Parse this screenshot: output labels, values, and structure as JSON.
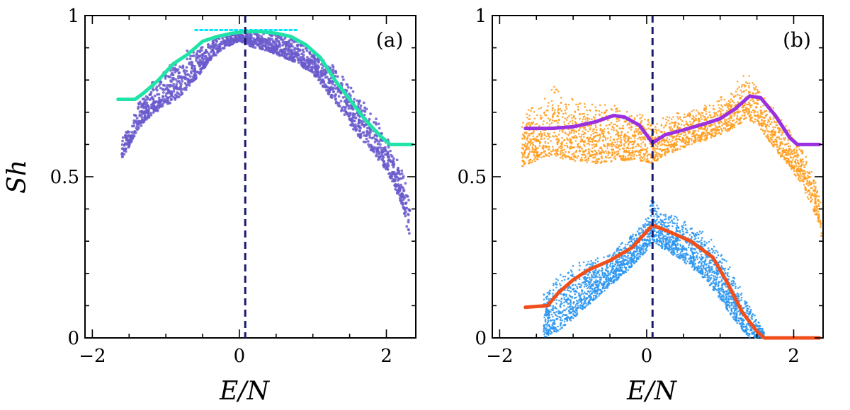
{
  "chart_data": [
    {
      "type": "scatter",
      "panel_label": "(a)",
      "xlabel": "E/N",
      "ylabel": "Sh",
      "xlim": [
        -2.1,
        2.4
      ],
      "ylim": [
        0,
        1
      ],
      "xticks": [
        -2,
        0,
        2
      ],
      "xtick_labels": [
        "−2",
        "0",
        "2"
      ],
      "yticks": [
        0,
        0.5,
        1
      ],
      "ytick_labels": [
        "0",
        "0.5",
        "1"
      ],
      "vline_x": 0.08,
      "colors": {
        "scatter": "#6a5acd",
        "curve": "#20e3a8",
        "ref_line": "#00e5ff",
        "vline": "#1a1a6e"
      },
      "series": [
        {
          "name": "average",
          "x": [
            -1.65,
            -1.42,
            -1.3,
            -1.1,
            -0.9,
            -0.7,
            -0.5,
            -0.3,
            -0.1,
            0.08,
            0.3,
            0.5,
            0.7,
            0.9,
            1.1,
            1.3,
            1.5,
            1.7,
            1.9,
            2.05,
            2.35
          ],
          "y": [
            0.74,
            0.74,
            0.76,
            0.8,
            0.85,
            0.88,
            0.92,
            0.935,
            0.945,
            0.95,
            0.95,
            0.945,
            0.935,
            0.91,
            0.87,
            0.8,
            0.74,
            0.68,
            0.63,
            0.6,
            0.6
          ]
        },
        {
          "name": "reference",
          "x": [
            -0.6,
            0.8
          ],
          "y": [
            0.955,
            0.955
          ]
        },
        {
          "name": "scatter_envelope",
          "x": [
            -1.6,
            -1.4,
            -1.2,
            -1.0,
            -0.8,
            -0.6,
            -0.4,
            -0.2,
            0.0,
            0.2,
            0.4,
            0.6,
            0.8,
            1.0,
            1.2,
            1.4,
            1.6,
            1.8,
            2.0,
            2.2,
            2.32
          ],
          "y_top": [
            0.62,
            0.72,
            0.79,
            0.84,
            0.88,
            0.91,
            0.93,
            0.945,
            0.955,
            0.955,
            0.95,
            0.94,
            0.92,
            0.89,
            0.86,
            0.82,
            0.77,
            0.71,
            0.63,
            0.53,
            0.44
          ],
          "y_bottom": [
            0.54,
            0.64,
            0.69,
            0.72,
            0.75,
            0.8,
            0.86,
            0.9,
            0.92,
            0.9,
            0.89,
            0.87,
            0.85,
            0.82,
            0.76,
            0.7,
            0.63,
            0.58,
            0.52,
            0.42,
            0.3
          ]
        }
      ]
    },
    {
      "type": "scatter",
      "panel_label": "(b)",
      "xlabel": "E/N",
      "ylabel": "",
      "xlim": [
        -2.1,
        2.4
      ],
      "ylim": [
        0,
        1
      ],
      "xticks": [
        -2,
        0,
        2
      ],
      "xtick_labels": [
        "−2",
        "0",
        "2"
      ],
      "yticks": [
        0,
        0.5,
        1
      ],
      "ytick_labels": [
        "0",
        "0.5",
        "1"
      ],
      "vline_x": 0.08,
      "colors": {
        "upper_scatter": "#ff9b1a",
        "upper_curve": "#9b30e0",
        "lower_scatter": "#2b95f0",
        "lower_curve": "#f04e1a",
        "vline": "#1a1a6e"
      },
      "series": [
        {
          "name": "upper_average",
          "x": [
            -1.65,
            -1.3,
            -1.0,
            -0.7,
            -0.45,
            -0.3,
            -0.1,
            0.08,
            0.25,
            0.5,
            0.8,
            1.0,
            1.2,
            1.4,
            1.55,
            1.75,
            1.95,
            2.05,
            2.35
          ],
          "y": [
            0.65,
            0.65,
            0.655,
            0.67,
            0.69,
            0.685,
            0.66,
            0.605,
            0.63,
            0.645,
            0.665,
            0.68,
            0.71,
            0.75,
            0.745,
            0.69,
            0.62,
            0.6,
            0.6
          ]
        },
        {
          "name": "upper_scatter_envelope",
          "x": [
            -1.7,
            -1.4,
            -1.25,
            -1.0,
            -0.7,
            -0.4,
            -0.1,
            0.08,
            0.3,
            0.6,
            0.9,
            1.2,
            1.35,
            1.5,
            1.7,
            1.9,
            2.1,
            2.3,
            2.38
          ],
          "y_top": [
            0.7,
            0.74,
            0.79,
            0.75,
            0.73,
            0.73,
            0.7,
            0.68,
            0.7,
            0.71,
            0.73,
            0.79,
            0.83,
            0.79,
            0.72,
            0.67,
            0.6,
            0.5,
            0.42
          ],
          "y_bottom": [
            0.53,
            0.56,
            0.56,
            0.55,
            0.54,
            0.55,
            0.55,
            0.54,
            0.57,
            0.6,
            0.62,
            0.65,
            0.68,
            0.66,
            0.6,
            0.54,
            0.48,
            0.38,
            0.31
          ]
        },
        {
          "name": "lower_average",
          "x": [
            -1.65,
            -1.35,
            -1.2,
            -1.0,
            -0.8,
            -0.5,
            -0.2,
            0.08,
            0.3,
            0.6,
            0.9,
            1.1,
            1.3,
            1.5,
            1.6,
            2.35
          ],
          "y": [
            0.095,
            0.1,
            0.14,
            0.18,
            0.21,
            0.24,
            0.28,
            0.35,
            0.33,
            0.3,
            0.25,
            0.17,
            0.08,
            0.02,
            0.0,
            0.0
          ]
        },
        {
          "name": "lower_scatter_envelope",
          "x": [
            -1.4,
            -1.2,
            -1.0,
            -0.8,
            -0.6,
            -0.4,
            -0.2,
            0.0,
            0.08,
            0.2,
            0.4,
            0.6,
            0.8,
            1.0,
            1.2,
            1.4,
            1.6
          ],
          "y_top": [
            0.15,
            0.2,
            0.23,
            0.25,
            0.25,
            0.28,
            0.33,
            0.38,
            0.45,
            0.4,
            0.38,
            0.35,
            0.33,
            0.27,
            0.2,
            0.1,
            0.02
          ],
          "y_bottom": [
            0.0,
            0.02,
            0.06,
            0.1,
            0.14,
            0.18,
            0.22,
            0.27,
            0.3,
            0.28,
            0.25,
            0.22,
            0.18,
            0.12,
            0.05,
            0.0,
            0.0
          ]
        }
      ]
    }
  ]
}
